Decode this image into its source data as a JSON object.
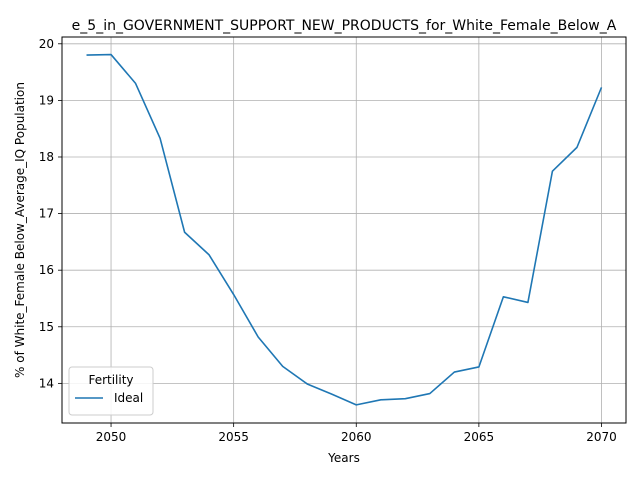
{
  "chart_data": {
    "type": "line",
    "title": "e_5_in_GOVERNMENT_SUPPORT_NEW_PRODUCTS_for_White_Female_Below_A",
    "xlabel": "Years",
    "ylabel": "% of White_Female Below_Average_IQ Population",
    "xlim": [
      2048,
      2071
    ],
    "ylim": [
      13.3,
      20.12
    ],
    "xticks": [
      2050,
      2055,
      2060,
      2065,
      2070
    ],
    "yticks": [
      14,
      15,
      16,
      17,
      18,
      19,
      20
    ],
    "grid": true,
    "legend": {
      "title": "Fertility",
      "placement": "lower-left"
    },
    "series": [
      {
        "name": "Ideal",
        "color": "#1f77b4",
        "x": [
          2049,
          2050,
          2051,
          2052,
          2053,
          2054,
          2055,
          2056,
          2057,
          2058,
          2059,
          2060,
          2061,
          2062,
          2063,
          2064,
          2065,
          2066,
          2067,
          2068,
          2069,
          2070
        ],
        "y": [
          19.8,
          19.81,
          19.3,
          18.33,
          16.67,
          16.27,
          15.57,
          14.82,
          14.3,
          13.99,
          13.81,
          13.62,
          13.71,
          13.73,
          13.82,
          14.2,
          14.29,
          15.53,
          15.43,
          17.75,
          18.17,
          19.23
        ]
      }
    ]
  }
}
